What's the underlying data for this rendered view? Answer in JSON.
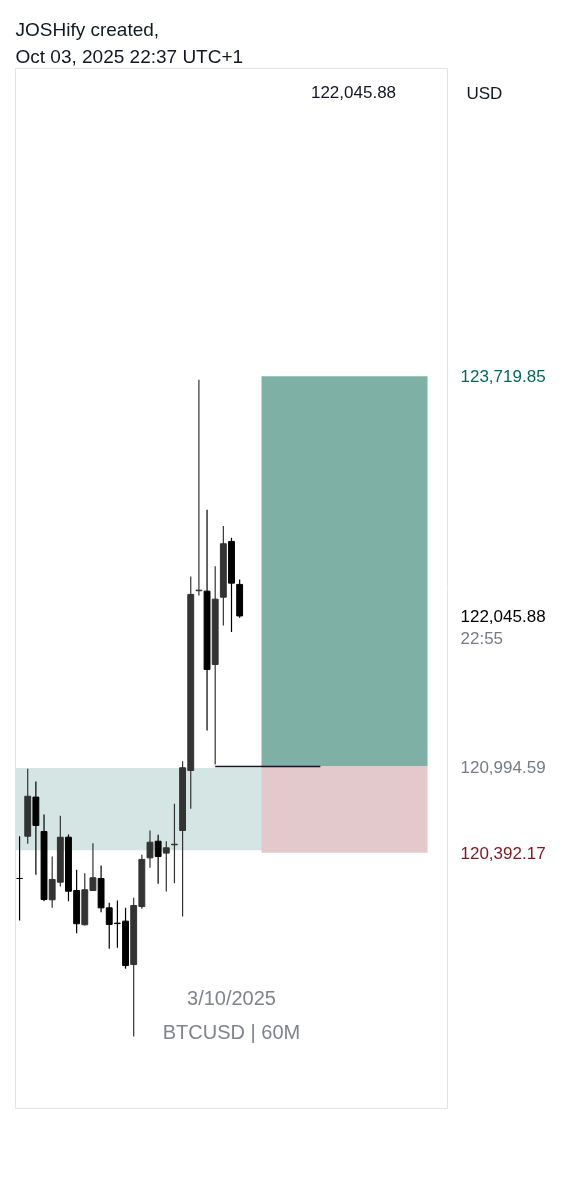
{
  "chart_data": {
    "type": "candlestick",
    "categories": [
      null,
      null,
      null,
      null,
      null,
      null,
      null,
      null,
      null,
      null,
      null,
      null,
      null,
      null,
      null,
      null,
      null,
      null,
      null,
      null,
      null,
      null,
      null,
      null,
      null,
      null,
      null,
      null,
      null,
      null,
      null,
      null,
      null,
      null,
      null,
      null,
      null,
      null,
      null,
      null,
      null,
      null,
      null,
      null,
      null,
      null,
      null,
      null,
      null,
      null,
      null,
      null,
      null
    ],
    "ohlc": [
      [
        120213,
        120508,
        119920,
        120213
      ],
      [
        120508,
        120979,
        120455,
        120787
      ],
      [
        120781,
        120890,
        120239,
        120583
      ],
      [
        120541,
        120660,
        120054,
        120066
      ],
      [
        120064,
        120366,
        120008,
        120206
      ],
      [
        120187,
        120651,
        120157,
        120501
      ],
      [
        120501,
        120520,
        120054,
        120124
      ],
      [
        120129,
        120274,
        119831,
        119897
      ],
      [
        119890,
        120250,
        119885,
        120134
      ],
      [
        120129,
        120459,
        120125,
        120218
      ],
      [
        120213,
        120304,
        119978,
        120008
      ],
      [
        120008,
        120043,
        119722,
        119892
      ],
      [
        119901,
        120059,
        119729,
        119898
      ],
      [
        119915,
        120008,
        119582,
        119605
      ],
      [
        119612,
        120078,
        119110,
        120024
      ],
      [
        120017,
        120378,
        120001,
        120346
      ],
      [
        120357,
        120548,
        120288,
        120466
      ],
      [
        120473,
        120518,
        120176,
        120366
      ],
      [
        120390,
        120473,
        120122,
        120427
      ],
      [
        120448,
        120734,
        120180,
        120452
      ],
      [
        120548,
        121032,
        119948,
        120986
      ],
      [
        120967,
        122321,
        120700,
        122196
      ],
      [
        122222,
        123695,
        122189,
        122226
      ],
      [
        122219,
        122787,
        121246,
        121672
      ],
      [
        121707,
        122393,
        121009,
        122163
      ],
      [
        122177,
        122673,
        121979,
        122550
      ],
      [
        122566,
        122592,
        121933,
        122275
      ],
      [
        122266,
        122301,
        122033,
        122045.88
      ],
      null,
      null,
      null,
      null,
      null,
      null,
      null,
      null,
      null,
      null,
      null,
      null,
      null,
      null,
      null,
      null,
      null,
      null,
      null,
      null,
      null,
      null,
      null,
      null,
      null
    ],
    "colors": [
      "#000000",
      "#333333",
      "#000000",
      "#000000",
      "#333333",
      "#333333",
      "#000000",
      "#000000",
      "#333333",
      "#333333",
      "#000000",
      "#000000",
      "#000000",
      "#000000",
      "#333333",
      "#333333",
      "#333333",
      "#000000",
      "#333333",
      "#333333",
      "#333333",
      "#333333",
      "#333333",
      "#000000",
      "#333333",
      "#333333",
      "#000000",
      "#000000",
      null,
      null,
      null,
      null,
      null,
      null,
      null,
      null,
      null,
      null,
      null,
      null,
      null,
      null,
      null,
      null,
      null,
      null,
      null,
      null,
      null,
      null,
      null,
      null,
      null
    ],
    "ylim": [
      118607,
      125868
    ],
    "yticks": [
      {
        "value": 120392.17,
        "label": "120,392.17"
      },
      {
        "value": 120994.59,
        "label": "120,994.59"
      },
      {
        "value": 122045.88,
        "label": "122,045.88"
      },
      {
        "value": 123719.85,
        "label": "123,719.85"
      }
    ],
    "tick_labels": "y",
    "ylabel": "USD",
    "bands": [
      {
        "axis": "y",
        "from": 120410,
        "to": 120985,
        "color": "#d4e5e3"
      },
      {
        "axis": "y",
        "from": 120994.59,
        "to": 123719.85,
        "color": "#7fb0a6"
      },
      {
        "axis": "y",
        "from": 120392.17,
        "to": 120994.59,
        "color": "#e3c9cc"
      }
    ],
    "ref_lines": [
      {
        "axis": "y",
        "value": 120994.59,
        "color": "#131722"
      }
    ],
    "annotations": [
      "JOSHify created,",
      "Oct 03, 2025 22:37 UTC+1",
      "122,045.88",
      "22:55",
      "3/10/2025",
      "BTCUSD | 60M"
    ]
  }
}
